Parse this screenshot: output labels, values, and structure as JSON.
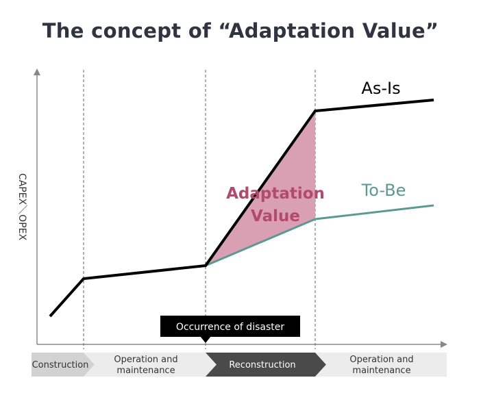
{
  "title": "The concept of “Adaptation Value”",
  "y_axis_label": "CAPEX＼OPEX",
  "series": {
    "as_is": {
      "label": "As-Is",
      "color": "#000000"
    },
    "to_be": {
      "label": "To-Be",
      "color": "#5a9a93"
    }
  },
  "area": {
    "label_line1": "Adaptation",
    "label_line2": "Value",
    "fill": "#d9a0b4"
  },
  "event": {
    "label": "Occurrence of disaster"
  },
  "phases": [
    {
      "line1": "Construction",
      "line2": ""
    },
    {
      "line1": "Operation and",
      "line2": "maintenance"
    },
    {
      "line1": "Reconstruction",
      "line2": ""
    },
    {
      "line1": "Operation and",
      "line2": "maintenance"
    }
  ]
}
